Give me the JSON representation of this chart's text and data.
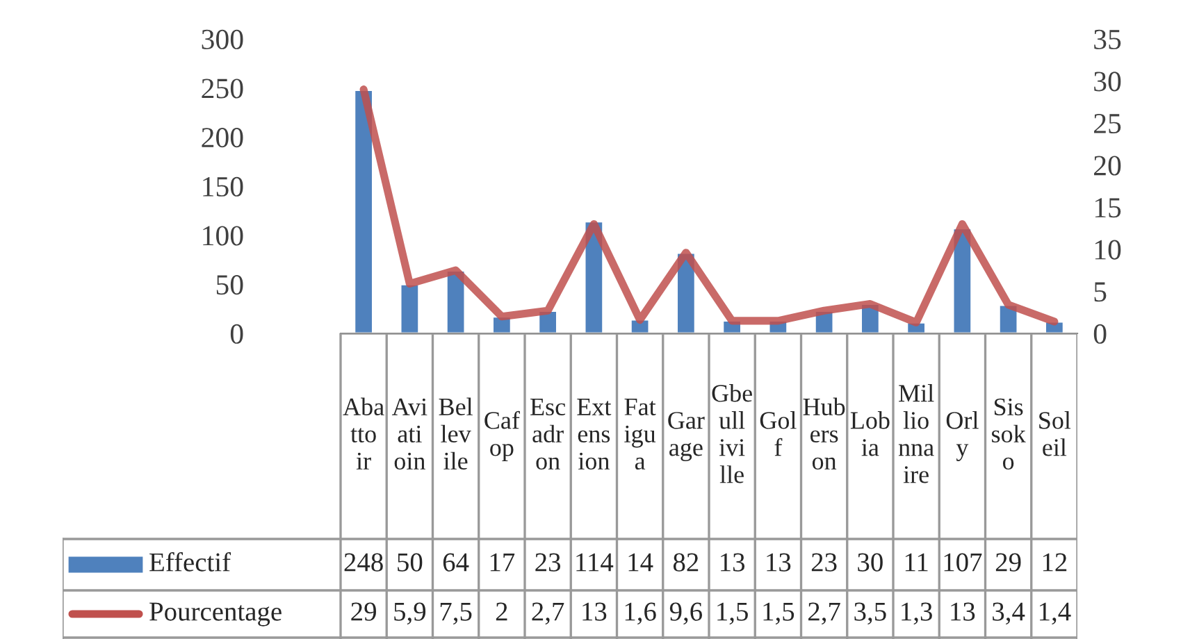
{
  "chart_data": {
    "type": "bar",
    "categories": [
      "Abattoir",
      "Aviatioin",
      "Bellevile",
      "Cafop",
      "Escadron",
      "Extension",
      "Fatigua",
      "Garage",
      "Gbeulliville",
      "Golf",
      "Huberson",
      "Lobia",
      "Millionnaire",
      "Orly",
      "Sissoko",
      "Soleil"
    ],
    "series": [
      {
        "name": "Effectif",
        "color": "#4f81bd",
        "values": [
          248,
          50,
          64,
          17,
          23,
          114,
          14,
          82,
          13,
          13,
          23,
          30,
          11,
          107,
          29,
          12
        ],
        "value_labels": [
          "248",
          "50",
          "64",
          "17",
          "23",
          "114",
          "14",
          "82",
          "13",
          "13",
          "23",
          "30",
          "11",
          "107",
          "29",
          "12"
        ]
      },
      {
        "name": "Pourcentage",
        "type": "line",
        "axis": "y2",
        "color": "#c0504d",
        "values": [
          29,
          5.9,
          7.5,
          2,
          2.7,
          13,
          1.6,
          9.6,
          1.5,
          1.5,
          2.7,
          3.5,
          1.3,
          13,
          3.4,
          1.4
        ],
        "value_labels": [
          "29",
          "5,9",
          "7,5",
          "2",
          "2,7",
          "13",
          "1,6",
          "9,6",
          "1,5",
          "1,5",
          "2,7",
          "3,5",
          "1,3",
          "13",
          "3,4",
          "1,4"
        ]
      }
    ],
    "ylim": [
      0,
      300
    ],
    "yticks": [
      0,
      50,
      100,
      150,
      200,
      250,
      300
    ],
    "y2lim": [
      0,
      35
    ],
    "y2ticks": [
      0,
      5,
      10,
      15,
      20,
      25,
      30,
      35
    ],
    "legend": "bottom",
    "grid": false,
    "marker": "none",
    "line_style": "solid"
  }
}
